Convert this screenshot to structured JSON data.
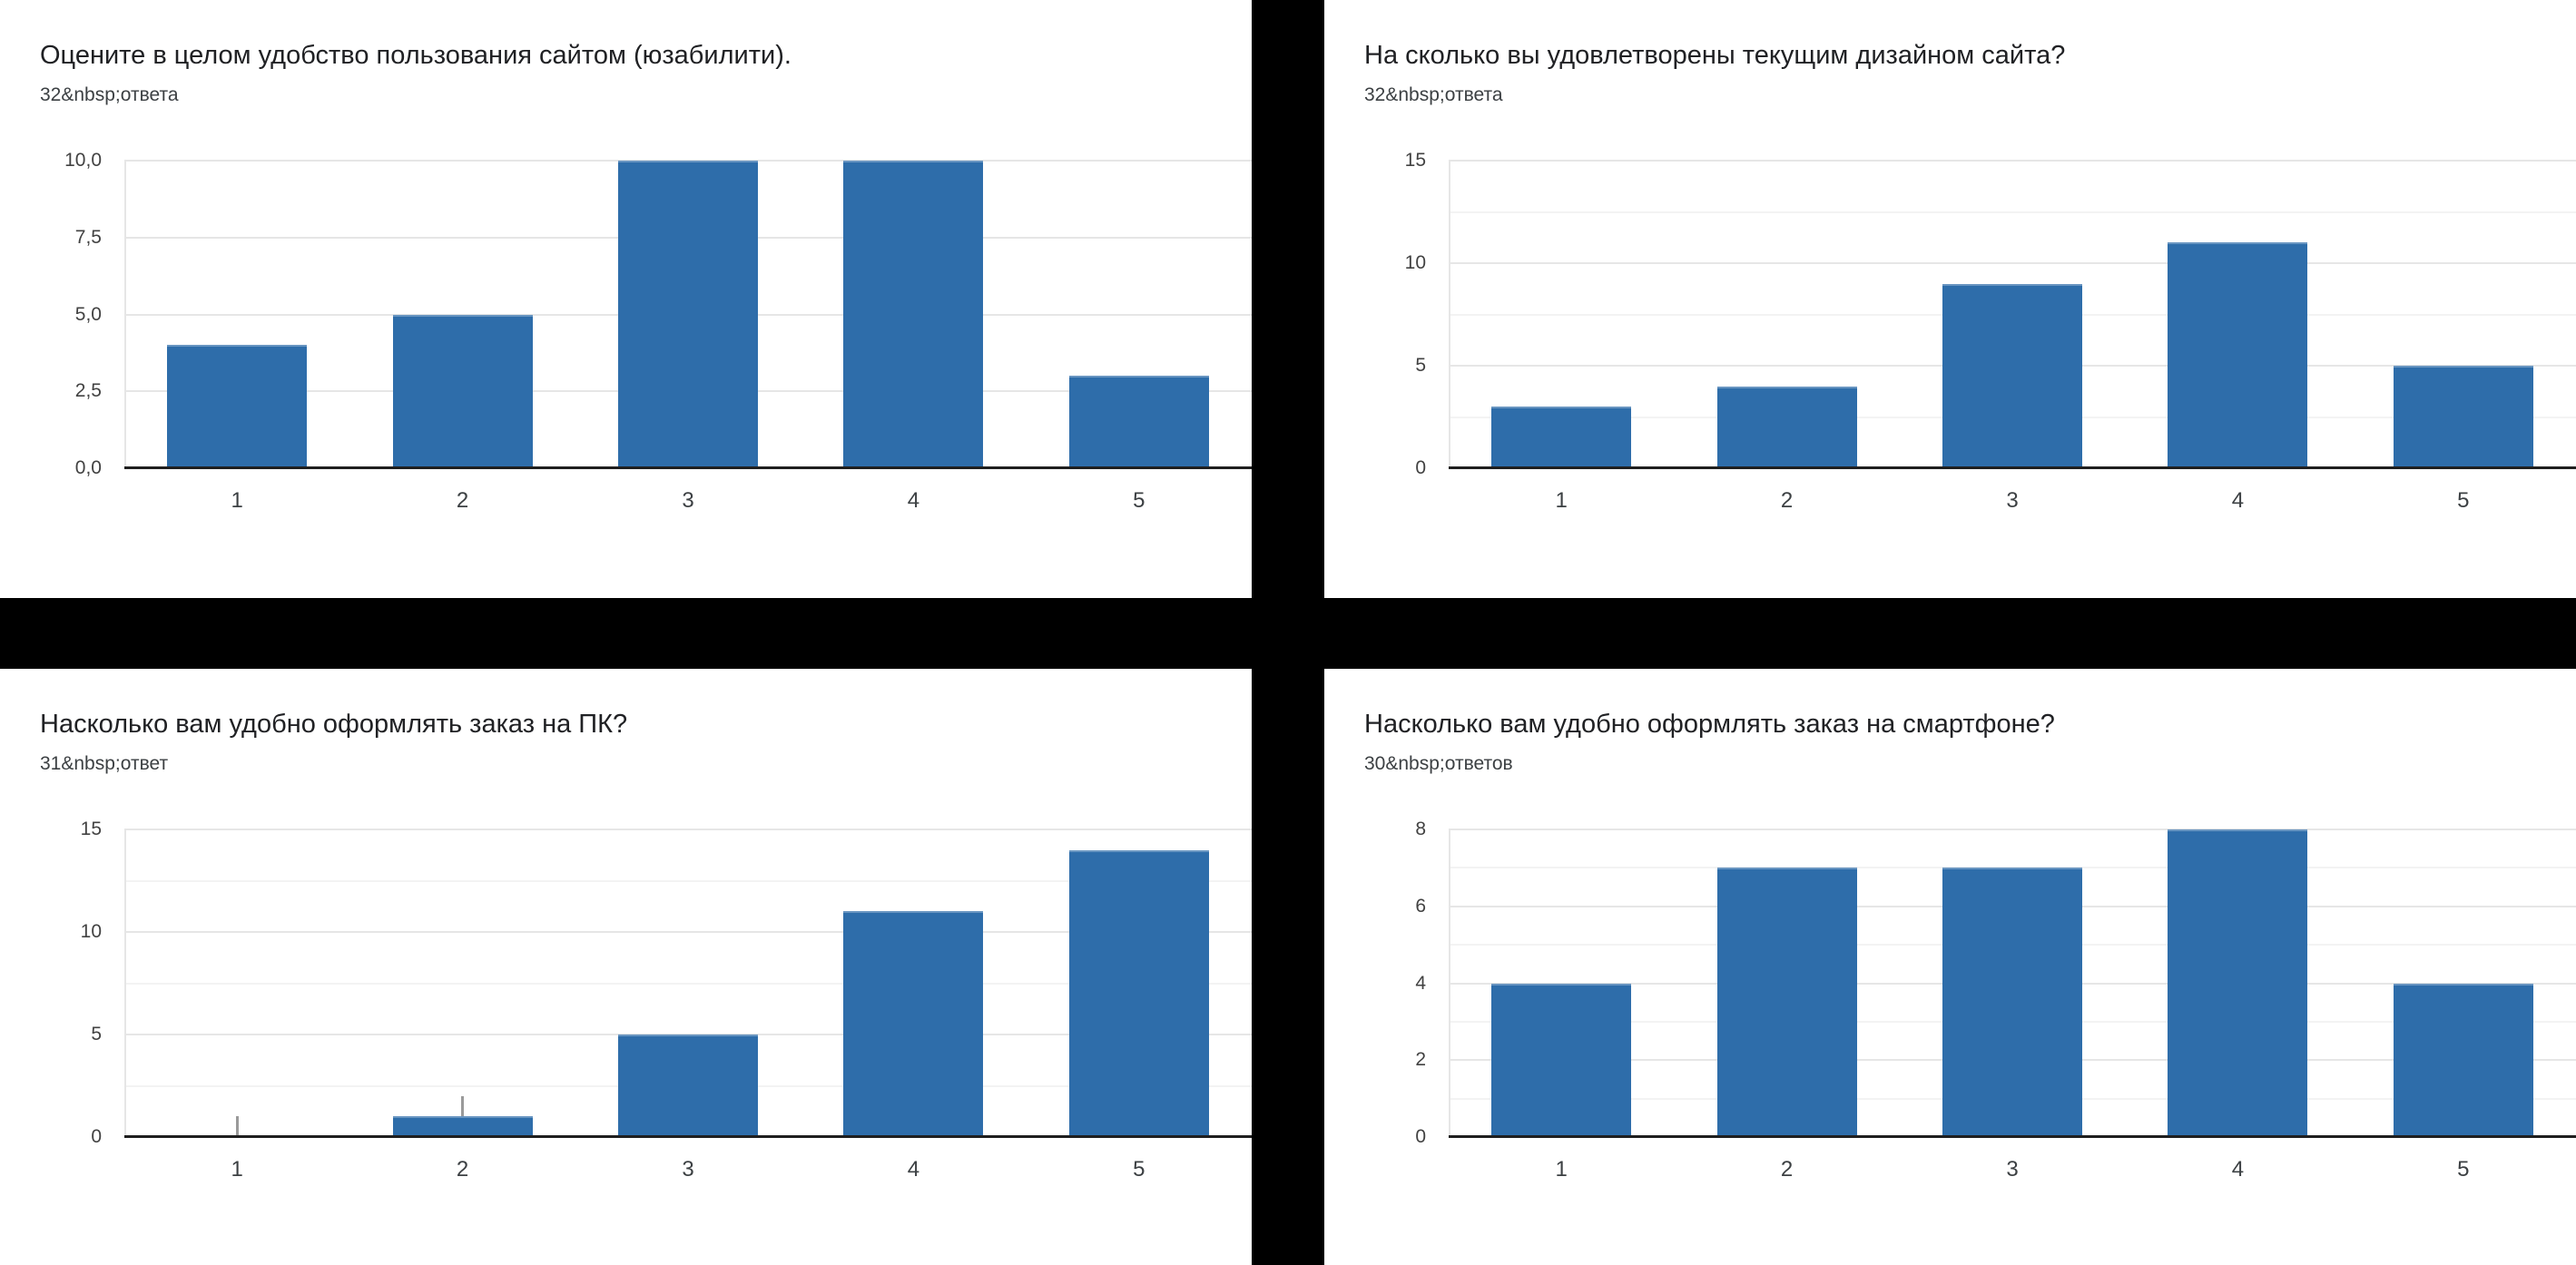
{
  "colors": {
    "bar": "#2e6daa",
    "divider": "#000000",
    "grid_major": "#e6e6e6",
    "grid_minor": "#f3f3f3",
    "axis_line": "#1f1f1f",
    "title_text": "#202124",
    "tick_text": "#424242",
    "stem": "#9a9a9a",
    "background": "#ffffff"
  },
  "chart_data": [
    {
      "type": "bar",
      "title": "Оцените в целом удобство пользования сайтом (юзабилити).",
      "subtitle": "32&nbsp;ответа",
      "categories": [
        "1",
        "2",
        "3",
        "4",
        "5"
      ],
      "values": [
        4,
        5,
        10,
        10,
        3
      ],
      "ylim": [
        0,
        10
      ],
      "y_ticks": [
        {
          "v": 0,
          "label": "0,0"
        },
        {
          "v": 2.5,
          "label": "2,5"
        },
        {
          "v": 5,
          "label": "5,0"
        },
        {
          "v": 7.5,
          "label": "7,5"
        },
        {
          "v": 10,
          "label": "10,0"
        }
      ],
      "minor_ticks": [],
      "stems": [],
      "grid": true,
      "legend": "none",
      "xlabel": "",
      "ylabel": ""
    },
    {
      "type": "bar",
      "title": "На сколько вы удовлетворены текущим дизайном сайта?",
      "subtitle": "32&nbsp;ответа",
      "categories": [
        "1",
        "2",
        "3",
        "4",
        "5"
      ],
      "values": [
        3,
        4,
        9,
        11,
        5
      ],
      "ylim": [
        0,
        15
      ],
      "y_ticks": [
        {
          "v": 0,
          "label": "0"
        },
        {
          "v": 5,
          "label": "5"
        },
        {
          "v": 10,
          "label": "10"
        },
        {
          "v": 15,
          "label": "15"
        }
      ],
      "minor_ticks": [
        2.5,
        7.5,
        12.5
      ],
      "stems": [],
      "grid": true,
      "legend": "none",
      "xlabel": "",
      "ylabel": ""
    },
    {
      "type": "bar",
      "title": "Насколько вам удобно оформлять заказ на ПК?",
      "subtitle": "31&nbsp;ответ",
      "categories": [
        "1",
        "2",
        "3",
        "4",
        "5"
      ],
      "values": [
        0,
        1,
        5,
        11,
        14
      ],
      "ylim": [
        0,
        15
      ],
      "y_ticks": [
        {
          "v": 0,
          "label": "0"
        },
        {
          "v": 5,
          "label": "5"
        },
        {
          "v": 10,
          "label": "10"
        },
        {
          "v": 15,
          "label": "15"
        }
      ],
      "minor_ticks": [
        2.5,
        7.5,
        12.5
      ],
      "stems": [
        {
          "cat": 0,
          "from": 0,
          "to": 1
        },
        {
          "cat": 1,
          "from": 1,
          "to": 2
        }
      ],
      "grid": true,
      "legend": "none",
      "xlabel": "",
      "ylabel": ""
    },
    {
      "type": "bar",
      "title": "Насколько вам удобно оформлять заказ на смартфоне?",
      "subtitle": "30&nbsp;ответов",
      "categories": [
        "1",
        "2",
        "3",
        "4",
        "5"
      ],
      "values": [
        4,
        7,
        7,
        8,
        4
      ],
      "ylim": [
        0,
        8
      ],
      "y_ticks": [
        {
          "v": 0,
          "label": "0"
        },
        {
          "v": 2,
          "label": "2"
        },
        {
          "v": 4,
          "label": "4"
        },
        {
          "v": 6,
          "label": "6"
        },
        {
          "v": 8,
          "label": "8"
        }
      ],
      "minor_ticks": [
        1,
        3,
        5,
        7
      ],
      "stems": [],
      "grid": true,
      "legend": "none",
      "xlabel": "",
      "ylabel": ""
    }
  ]
}
